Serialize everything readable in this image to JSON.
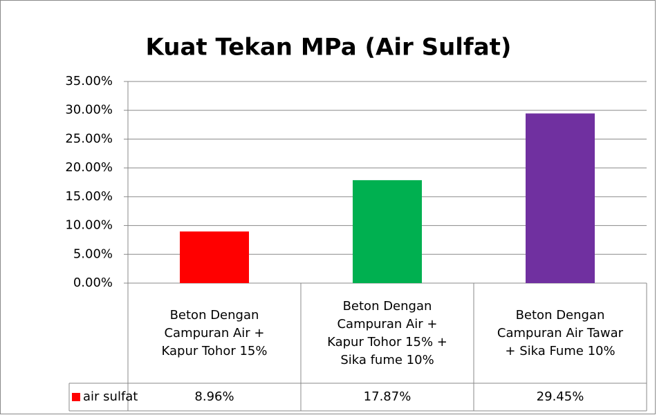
{
  "chart_data": {
    "type": "bar",
    "title": "Kuat Tekan MPa (Air Sulfat)",
    "categories": [
      "Beton Dengan Campuran Air + Kapur Tohor 15%",
      "Beton Dengan Campuran Air + Kapur Tohor 15% + Sika fume 10%",
      "Beton Dengan Campuran Air Tawar + Sika Fume 10%"
    ],
    "series": [
      {
        "name": "air sulfat",
        "color": "#ff0000",
        "colors": [
          "#ff0000",
          "#00b050",
          "#7030a0"
        ],
        "values": [
          8.96,
          17.87,
          29.45
        ],
        "value_labels": [
          "8.96%",
          "17.87%",
          "29.45%"
        ]
      }
    ],
    "ylim": [
      0,
      35
    ],
    "yticks": [
      {
        "value": 0,
        "label": "0.00%"
      },
      {
        "value": 5,
        "label": "5.00%"
      },
      {
        "value": 10,
        "label": "10.00%"
      },
      {
        "value": 15,
        "label": "15.00%"
      },
      {
        "value": 20,
        "label": "20.00%"
      },
      {
        "value": 25,
        "label": "25.00%"
      },
      {
        "value": 30,
        "label": "30.00%"
      },
      {
        "value": 35,
        "label": "35.00%"
      }
    ],
    "grid": true
  }
}
